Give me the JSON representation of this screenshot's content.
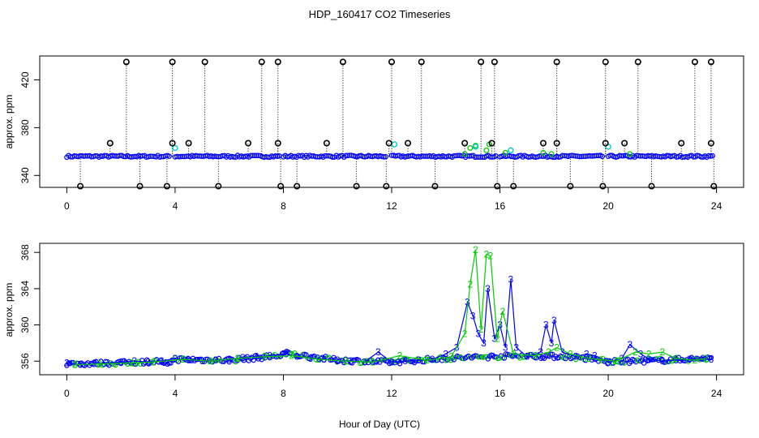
{
  "title": "HDP_160417  CO2 Timeseries",
  "xlabel": "Hour of Day (UTC)",
  "colors": {
    "axis": "#000000",
    "outlier": "#000000",
    "cyan": "#00cccc",
    "blue": "#0000ff",
    "green": "#00cc00"
  },
  "chart_data": [
    {
      "type": "scatter",
      "title": "HDP_160417  CO2 Timeseries",
      "ylabel": "approx. ppm",
      "xlabel": "",
      "xlim": [
        -1,
        25
      ],
      "ylim": [
        330,
        440
      ],
      "xticks": [
        0,
        4,
        8,
        12,
        16,
        20,
        24
      ],
      "yticks": [
        340,
        380,
        420
      ],
      "baseline": 356,
      "baseline_segments": [
        [
          0,
          3.8
        ],
        [
          4.0,
          7.9
        ],
        [
          8.0,
          11.8
        ],
        [
          12.0,
          15.9
        ],
        [
          16.0,
          19.8
        ],
        [
          20.0,
          23.9
        ]
      ],
      "high_outliers_x": [
        2.2,
        3.9,
        5.1,
        7.2,
        7.8,
        10.2,
        12.0,
        13.1,
        15.3,
        15.8,
        18.1,
        19.9,
        21.1,
        23.2,
        23.8
      ],
      "high_outlier_value": 435,
      "mid_outliers_x": [
        1.6,
        3.9,
        4.5,
        6.7,
        7.8,
        9.6,
        11.9,
        12.6,
        14.7,
        15.7,
        17.6,
        18.1,
        19.9,
        20.6,
        22.7,
        23.8
      ],
      "mid_outlier_value": 367,
      "low_outliers_x": [
        0.5,
        2.7,
        3.7,
        5.6,
        7.9,
        8.5,
        10.7,
        11.8,
        13.6,
        15.9,
        16.5,
        18.6,
        19.8,
        21.6,
        23.9
      ],
      "low_outlier_value": 331,
      "cyan_points": [
        [
          4.0,
          363
        ],
        [
          12.1,
          366
        ],
        [
          15.1,
          364
        ],
        [
          16.4,
          361
        ],
        [
          20.0,
          364
        ]
      ],
      "bump_points": [
        [
          14.7,
          358
        ],
        [
          14.9,
          363
        ],
        [
          15.1,
          365
        ],
        [
          15.5,
          361
        ],
        [
          15.6,
          366
        ],
        [
          16.2,
          359
        ],
        [
          17.6,
          359
        ],
        [
          17.9,
          358
        ],
        [
          20.8,
          358
        ]
      ]
    },
    {
      "type": "scatter",
      "title": "",
      "ylabel": "approx. ppm",
      "xlabel": "Hour of Day (UTC)",
      "xlim": [
        -1,
        25
      ],
      "ylim": [
        354.5,
        369
      ],
      "xticks": [
        0,
        4,
        8,
        12,
        16,
        20,
        24
      ],
      "yticks": [
        356,
        360,
        364,
        368
      ],
      "series": [
        {
          "name": "3",
          "color": "#0000ff",
          "points": [
            [
              0.0,
              355.8
            ],
            [
              0.5,
              355.6
            ],
            [
              1.0,
              355.7
            ],
            [
              1.5,
              355.8
            ],
            [
              2.0,
              355.9
            ],
            [
              2.5,
              356.0
            ],
            [
              3.0,
              355.9
            ],
            [
              3.5,
              356.0
            ],
            [
              4.0,
              356.3
            ],
            [
              4.5,
              356.1
            ],
            [
              5.0,
              356.0
            ],
            [
              5.5,
              356.1
            ],
            [
              6.0,
              356.2
            ],
            [
              6.5,
              356.4
            ],
            [
              7.0,
              356.5
            ],
            [
              7.5,
              356.6
            ],
            [
              8.1,
              356.8
            ],
            [
              8.5,
              356.5
            ],
            [
              9.0,
              356.3
            ],
            [
              9.5,
              356.2
            ],
            [
              10.0,
              356.1
            ],
            [
              10.5,
              356.0
            ],
            [
              11.0,
              355.9
            ],
            [
              11.5,
              357.0
            ],
            [
              12.0,
              355.9
            ],
            [
              12.5,
              356.0
            ],
            [
              13.0,
              356.1
            ],
            [
              13.5,
              356.2
            ],
            [
              14.0,
              356.8
            ],
            [
              14.4,
              357.5
            ],
            [
              14.8,
              362.5
            ],
            [
              15.0,
              361.0
            ],
            [
              15.2,
              359.0
            ],
            [
              15.4,
              358.0
            ],
            [
              15.55,
              364.0
            ],
            [
              15.8,
              358.5
            ],
            [
              16.0,
              360.0
            ],
            [
              16.2,
              357.5
            ],
            [
              16.4,
              365.0
            ],
            [
              16.6,
              357.5
            ],
            [
              17.0,
              356.5
            ],
            [
              17.5,
              357.0
            ],
            [
              17.7,
              360.0
            ],
            [
              17.9,
              358.0
            ],
            [
              18.0,
              360.5
            ],
            [
              18.3,
              357.0
            ],
            [
              18.8,
              356.5
            ],
            [
              19.2,
              356.8
            ],
            [
              19.5,
              356.6
            ],
            [
              20.0,
              355.9
            ],
            [
              20.5,
              356.3
            ],
            [
              20.8,
              357.8
            ],
            [
              21.2,
              356.8
            ],
            [
              21.5,
              356.2
            ],
            [
              22.0,
              356.0
            ],
            [
              22.5,
              356.1
            ],
            [
              23.0,
              356.2
            ],
            [
              23.5,
              356.3
            ],
            [
              23.8,
              356.2
            ]
          ]
        },
        {
          "name": "2",
          "color": "#00cc00",
          "points": [
            [
              0.3,
              355.6
            ],
            [
              1.2,
              355.7
            ],
            [
              2.4,
              355.8
            ],
            [
              3.2,
              355.9
            ],
            [
              4.3,
              356.2
            ],
            [
              5.3,
              356.0
            ],
            [
              6.3,
              356.3
            ],
            [
              7.3,
              356.5
            ],
            [
              8.3,
              356.6
            ],
            [
              9.3,
              356.2
            ],
            [
              10.3,
              356.0
            ],
            [
              11.3,
              355.9
            ],
            [
              12.3,
              356.6
            ],
            [
              13.3,
              356.1
            ],
            [
              14.2,
              356.5
            ],
            [
              14.7,
              359.0
            ],
            [
              14.9,
              364.5
            ],
            [
              15.1,
              368.3
            ],
            [
              15.3,
              359.5
            ],
            [
              15.5,
              367.8
            ],
            [
              15.65,
              367.6
            ],
            [
              15.9,
              358.5
            ],
            [
              16.1,
              361.5
            ],
            [
              16.5,
              356.8
            ],
            [
              17.3,
              356.6
            ],
            [
              17.8,
              357.0
            ],
            [
              18.1,
              357.5
            ],
            [
              18.6,
              356.8
            ],
            [
              19.3,
              356.3
            ],
            [
              20.3,
              356.0
            ],
            [
              21.0,
              357.0
            ],
            [
              21.5,
              356.8
            ],
            [
              22.0,
              357.0
            ],
            [
              22.5,
              356.3
            ],
            [
              23.2,
              356.1
            ],
            [
              23.6,
              356.3
            ]
          ]
        }
      ],
      "dense_points": [
        [
          0,
          355.7
        ],
        [
          2,
          355.8
        ],
        [
          3.4,
          356.0
        ],
        [
          3.6,
          355.6
        ],
        [
          4,
          356.2
        ],
        [
          6,
          356.1
        ],
        [
          7.9,
          356.6
        ],
        [
          8,
          356.9
        ],
        [
          10,
          356.1
        ],
        [
          11.8,
          355.9
        ],
        [
          12,
          355.9
        ],
        [
          14,
          356.3
        ],
        [
          16.5,
          356.6
        ],
        [
          18.5,
          356.5
        ],
        [
          19.8,
          356.1
        ],
        [
          20,
          355.9
        ],
        [
          22,
          356.1
        ],
        [
          23.8,
          356.3
        ]
      ]
    }
  ]
}
